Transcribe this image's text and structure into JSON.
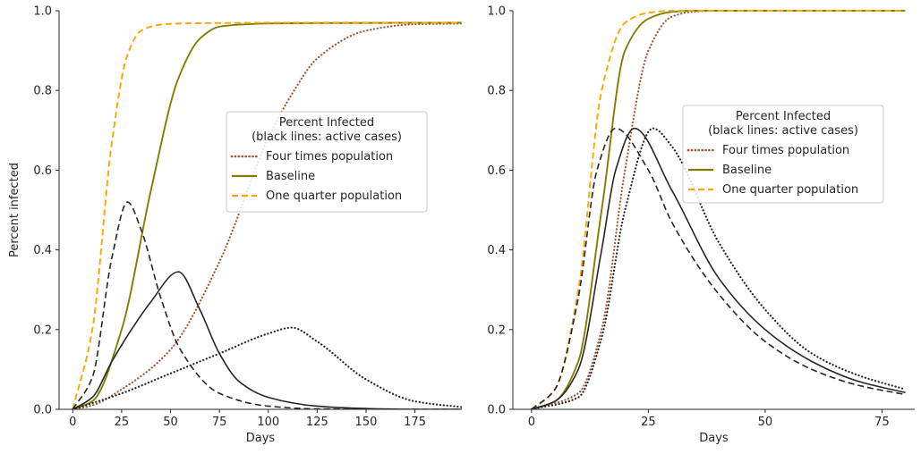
{
  "chart_data": [
    {
      "type": "line",
      "xlabel": "Days",
      "ylabel": "Percent infected",
      "xlim": [
        -7,
        199
      ],
      "ylim": [
        0,
        1.0
      ],
      "xticks": [
        0,
        25,
        50,
        75,
        100,
        125,
        150,
        175
      ],
      "yticks": [
        0.0,
        0.2,
        0.4,
        0.6,
        0.8,
        1.0
      ],
      "xticklabels": [
        "0",
        "25",
        "50",
        "75",
        "100",
        "125",
        "150",
        "175"
      ],
      "yticklabels": [
        "0.0",
        "0.2",
        "0.4",
        "0.6",
        "0.8",
        "1.0"
      ],
      "grid": false,
      "legend": {
        "title_lines": [
          "Percent Infected",
          "(black lines: active cases)"
        ],
        "placement": "center-right",
        "entries": [
          {
            "label": "Four times population",
            "color": "#a0522d",
            "dash": "dotted"
          },
          {
            "label": "Baseline",
            "color": "#808000",
            "dash": "solid"
          },
          {
            "label": "One quarter population",
            "color": "#ffa500",
            "dash": "dashed"
          }
        ]
      },
      "series": [
        {
          "name": "Four times population",
          "role": "cumulative",
          "color": "#a0522d",
          "dash": "dotted",
          "x": [
            0,
            10,
            25,
            50,
            75,
            100,
            112,
            125,
            150,
            175,
            200
          ],
          "y": [
            0.0,
            0.01,
            0.05,
            0.15,
            0.37,
            0.68,
            0.79,
            0.88,
            0.95,
            0.966,
            0.968
          ]
        },
        {
          "name": "Baseline",
          "role": "cumulative",
          "color": "#808000",
          "dash": "solid",
          "x": [
            0,
            10,
            25,
            40,
            54,
            65,
            75,
            85,
            100,
            125,
            200
          ],
          "y": [
            0.0,
            0.02,
            0.2,
            0.55,
            0.83,
            0.93,
            0.96,
            0.965,
            0.968,
            0.969,
            0.97
          ]
        },
        {
          "name": "One quarter population",
          "role": "cumulative",
          "color": "#ffa500",
          "dash": "dashed",
          "x": [
            0,
            10,
            20,
            28,
            35,
            45,
            55,
            75,
            100,
            200
          ],
          "y": [
            0.0,
            0.2,
            0.67,
            0.89,
            0.95,
            0.965,
            0.968,
            0.969,
            0.97,
            0.97
          ]
        },
        {
          "name": "Four times population active",
          "role": "active",
          "color": "#262626",
          "dash": "dotted",
          "x": [
            0,
            25,
            50,
            75,
            100,
            112,
            125,
            150,
            175,
            200
          ],
          "y": [
            0.0,
            0.04,
            0.09,
            0.14,
            0.19,
            0.205,
            0.17,
            0.075,
            0.02,
            0.005
          ]
        },
        {
          "name": "Baseline active",
          "role": "active",
          "color": "#262626",
          "dash": "solid",
          "x": [
            0,
            10,
            20,
            30,
            40,
            54,
            65,
            75,
            85,
            100,
            125,
            150,
            175,
            200
          ],
          "y": [
            0.0,
            0.03,
            0.12,
            0.2,
            0.27,
            0.345,
            0.25,
            0.14,
            0.07,
            0.03,
            0.008,
            0.002,
            0.0,
            0.0
          ]
        },
        {
          "name": "One quarter population active",
          "role": "active",
          "color": "#262626",
          "dash": "dashed",
          "x": [
            0,
            10,
            20,
            28,
            35,
            45,
            55,
            75,
            100,
            125,
            150,
            200
          ],
          "y": [
            0.0,
            0.08,
            0.38,
            0.52,
            0.45,
            0.28,
            0.15,
            0.04,
            0.008,
            0.001,
            0.0,
            0.0
          ]
        }
      ]
    },
    {
      "type": "line",
      "xlabel": "Days",
      "ylabel": "",
      "xlim": [
        -4,
        82
      ],
      "ylim": [
        0,
        1.0
      ],
      "xticks": [
        0,
        25,
        50,
        75
      ],
      "yticks": [
        0.0,
        0.2,
        0.4,
        0.6,
        0.8,
        1.0
      ],
      "xticklabels": [
        "0",
        "25",
        "50",
        "75"
      ],
      "yticklabels": [
        "0.0",
        "0.2",
        "0.4",
        "0.6",
        "0.8",
        "1.0"
      ],
      "grid": false,
      "legend": {
        "title_lines": [
          "Percent Infected",
          "(black lines: active cases)"
        ],
        "placement": "center-right",
        "entries": [
          {
            "label": "Four times population",
            "color": "#a0522d",
            "dash": "dotted"
          },
          {
            "label": "Baseline",
            "color": "#808000",
            "dash": "solid"
          },
          {
            "label": "One quarter population",
            "color": "#ffa500",
            "dash": "dashed"
          }
        ]
      },
      "series": [
        {
          "name": "Four times population",
          "role": "cumulative",
          "color": "#a0522d",
          "dash": "dotted",
          "x": [
            0,
            10,
            15,
            20,
            25,
            30,
            35,
            40,
            80
          ],
          "y": [
            0.0,
            0.04,
            0.2,
            0.6,
            0.9,
            0.985,
            0.998,
            1.0,
            1.0
          ]
        },
        {
          "name": "Baseline",
          "role": "cumulative",
          "color": "#808000",
          "dash": "solid",
          "x": [
            0,
            5,
            10,
            15,
            20,
            25,
            30,
            35,
            80
          ],
          "y": [
            0.0,
            0.02,
            0.12,
            0.5,
            0.9,
            0.98,
            0.997,
            1.0,
            1.0
          ]
        },
        {
          "name": "One quarter population",
          "role": "cumulative",
          "color": "#ffa500",
          "dash": "dashed",
          "x": [
            0,
            5,
            10,
            15,
            20,
            25,
            30,
            80
          ],
          "y": [
            0.0,
            0.05,
            0.3,
            0.8,
            0.97,
            0.995,
            1.0,
            1.0
          ]
        },
        {
          "name": "Four times population active",
          "role": "active",
          "color": "#262626",
          "dash": "dotted",
          "x": [
            0,
            10,
            15,
            20,
            26,
            30,
            40,
            50,
            60,
            70,
            80
          ],
          "y": [
            0.0,
            0.03,
            0.18,
            0.5,
            0.705,
            0.66,
            0.42,
            0.25,
            0.14,
            0.085,
            0.05
          ]
        },
        {
          "name": "Baseline active",
          "role": "active",
          "color": "#262626",
          "dash": "solid",
          "x": [
            0,
            5,
            10,
            15,
            18,
            22,
            30,
            40,
            50,
            60,
            70,
            80
          ],
          "y": [
            0.0,
            0.02,
            0.1,
            0.4,
            0.6,
            0.705,
            0.55,
            0.33,
            0.2,
            0.12,
            0.07,
            0.042
          ]
        },
        {
          "name": "One quarter population active",
          "role": "active",
          "color": "#262626",
          "dash": "dashed",
          "x": [
            0,
            5,
            10,
            14,
            18,
            25,
            30,
            40,
            50,
            60,
            70,
            80
          ],
          "y": [
            0.0,
            0.05,
            0.28,
            0.6,
            0.705,
            0.6,
            0.47,
            0.29,
            0.17,
            0.1,
            0.06,
            0.037
          ]
        }
      ]
    }
  ]
}
